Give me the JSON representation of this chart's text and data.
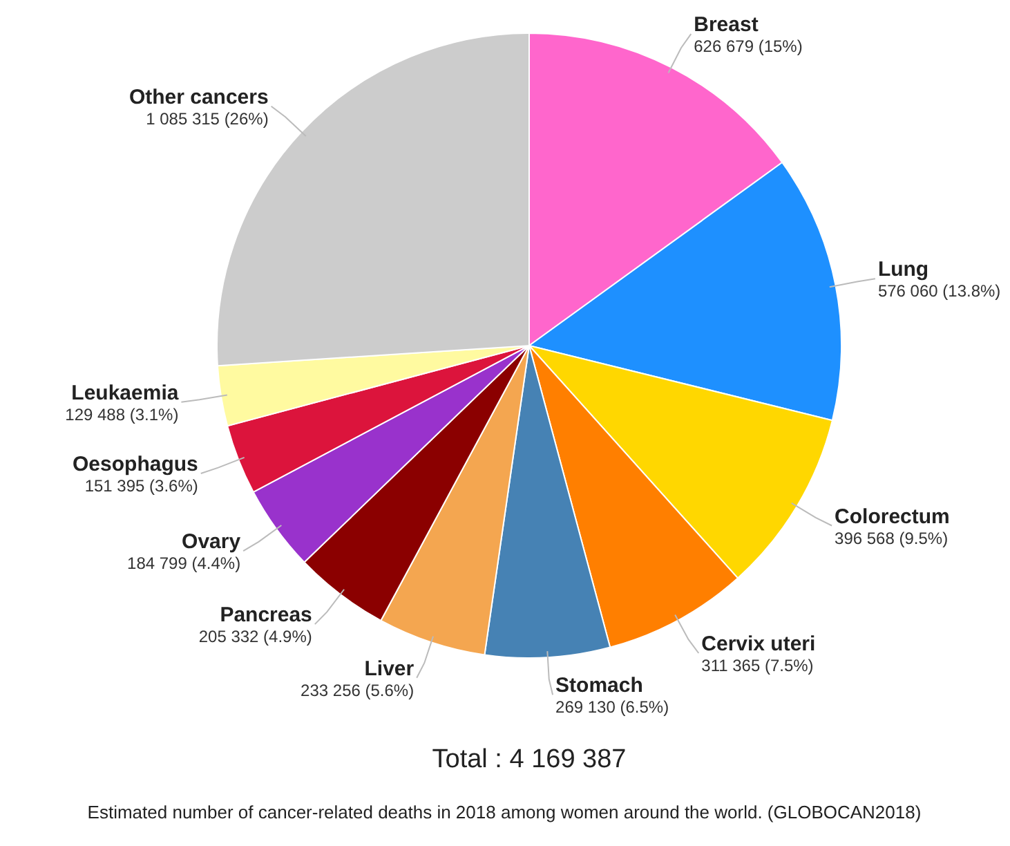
{
  "chart_data": {
    "type": "pie",
    "categories": [
      "Breast",
      "Lung",
      "Colorectum",
      "Cervix uteri",
      "Stomach",
      "Liver",
      "Pancreas",
      "Ovary",
      "Oesophagus",
      "Leukaemia",
      "Other cancers"
    ],
    "values": [
      626679,
      576060,
      396568,
      311365,
      269130,
      233256,
      205332,
      184799,
      151395,
      129488,
      1085315
    ],
    "value_labels": [
      "626 679 (15%)",
      "576 060 (13.8%)",
      "396 568 (9.5%)",
      "311 365 (7.5%)",
      "269 130 (6.5%)",
      "233 256 (5.6%)",
      "205 332 (4.9%)",
      "184 799 (4.4%)",
      "151 395 (3.6%)",
      "129 488 (3.1%)",
      "1 085 315 (26%)"
    ],
    "colors": [
      "#ff66cc",
      "#1e90ff",
      "#ffd700",
      "#ff7f00",
      "#4682b4",
      "#f4a650",
      "#8b0000",
      "#9932cc",
      "#dc143c",
      "#fffaa0",
      "#cccccc"
    ],
    "annotations": [
      "Total : 4 169 387",
      "Estimated number of cancer-related deaths in 2018 among women around the world. (GLOBOCAN2018)"
    ]
  }
}
